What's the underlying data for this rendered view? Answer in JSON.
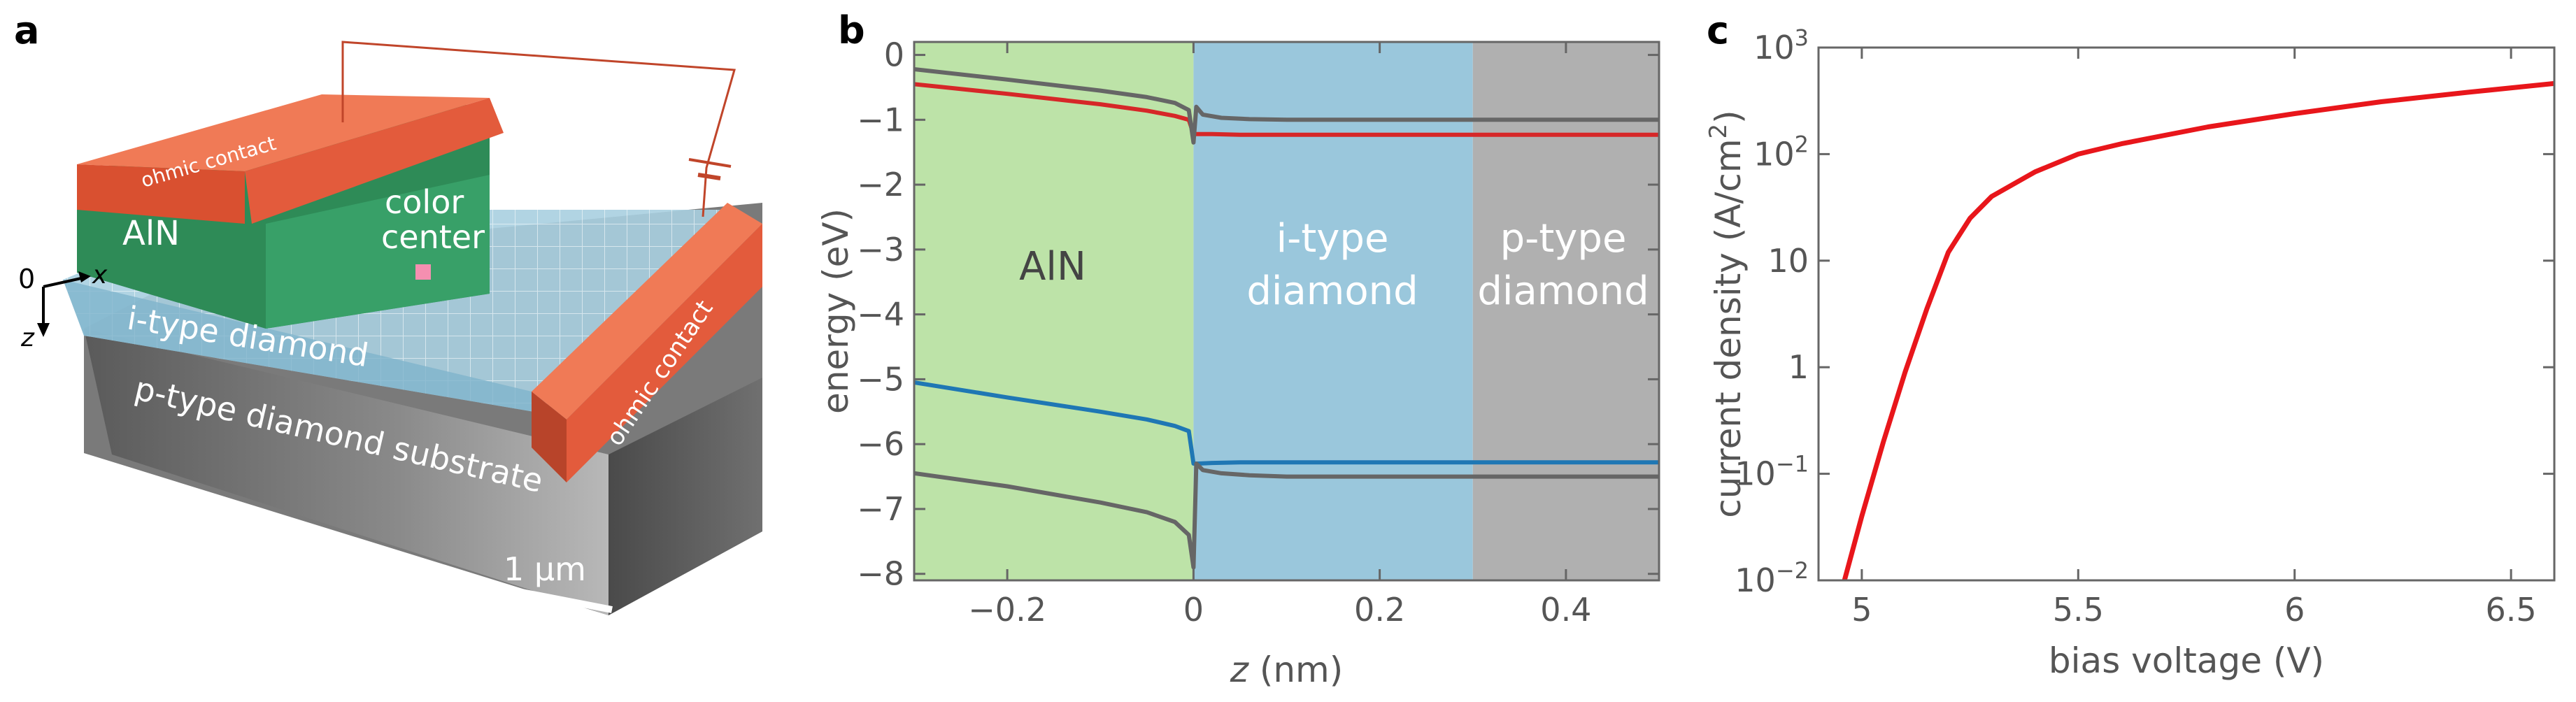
{
  "panels": {
    "a": {
      "letter": "a",
      "labels": {
        "ohmic_top": "ohmic contact",
        "ohmic_right": "ohmic contact",
        "aln": "AlN",
        "color_center_1": "color",
        "color_center_2": "center",
        "itype": "i-type diamond",
        "ptype": "p-type diamond substrate",
        "scale": "1 μm",
        "origin": "0",
        "x_axis": "x",
        "z_axis": "z"
      },
      "colors": {
        "contact": "#e35b3c",
        "aln": "#2e8b57",
        "itype": "#a9cfe0",
        "substrate": "#6e6e6e"
      }
    },
    "b": {
      "letter": "b",
      "regions": {
        "aln": "AlN",
        "itype_1": "i-type",
        "itype_2": "diamond",
        "ptype_1": "p-type",
        "ptype_2": "diamond"
      },
      "region_colors": {
        "aln": "#bde3a8",
        "itype": "#9ac7dc",
        "ptype": "#b0b0b0"
      }
    },
    "c": {
      "letter": "c"
    }
  },
  "chart_data": [
    {
      "type": "line",
      "panel": "b",
      "xlabel_italic": "z",
      "xlabel_unit": " (nm)",
      "ylabel": "energy (eV)",
      "xlim": [
        -0.3,
        0.5
      ],
      "ylim": [
        -8.1,
        0.2
      ],
      "x_ticks": [
        -0.2,
        0,
        0.2,
        0.4
      ],
      "x_tick_labels": [
        "−0.2",
        "0",
        "0.2",
        "0.4"
      ],
      "y_ticks": [
        0,
        -1,
        -2,
        -3,
        -4,
        -5,
        -6,
        -7,
        -8
      ],
      "y_tick_labels": [
        "0",
        "−1",
        "−2",
        "−3",
        "−4",
        "−5",
        "−6",
        "−7",
        "−8"
      ],
      "region_bounds": {
        "aln": [
          -0.3,
          0
        ],
        "itype": [
          0,
          0.3
        ],
        "ptype": [
          0.3,
          0.5
        ]
      },
      "series": [
        {
          "color": "#d62728",
          "x": [
            -0.3,
            -0.2,
            -0.1,
            -0.05,
            -0.02,
            -0.005,
            0.0,
            0.005,
            0.02,
            0.05,
            0.1,
            0.3,
            0.5
          ],
          "y": [
            -0.45,
            -0.6,
            -0.76,
            -0.86,
            -0.94,
            -1.0,
            -1.22,
            -1.22,
            -1.22,
            -1.23,
            -1.23,
            -1.23,
            -1.23
          ]
        },
        {
          "color": "#666666",
          "x": [
            -0.3,
            -0.2,
            -0.1,
            -0.05,
            -0.02,
            -0.005,
            0.0,
            0.003,
            0.01,
            0.03,
            0.06,
            0.1,
            0.3,
            0.5
          ],
          "y": [
            -0.22,
            -0.38,
            -0.55,
            -0.65,
            -0.74,
            -0.85,
            -1.35,
            -0.8,
            -0.92,
            -0.97,
            -0.99,
            -1.0,
            -1.0,
            -1.0
          ]
        },
        {
          "color": "#1f77b4",
          "x": [
            -0.3,
            -0.2,
            -0.1,
            -0.05,
            -0.02,
            -0.005,
            0.0,
            0.005,
            0.02,
            0.05,
            0.1,
            0.3,
            0.5
          ],
          "y": [
            -5.05,
            -5.28,
            -5.5,
            -5.62,
            -5.72,
            -5.8,
            -6.3,
            -6.3,
            -6.29,
            -6.28,
            -6.28,
            -6.28,
            -6.28
          ]
        },
        {
          "color": "#666666",
          "x": [
            -0.3,
            -0.2,
            -0.1,
            -0.05,
            -0.02,
            -0.005,
            0.0,
            0.003,
            0.01,
            0.03,
            0.06,
            0.1,
            0.3,
            0.5
          ],
          "y": [
            -6.45,
            -6.65,
            -6.9,
            -7.05,
            -7.2,
            -7.4,
            -7.9,
            -6.3,
            -6.4,
            -6.45,
            -6.48,
            -6.5,
            -6.5,
            -6.5
          ]
        }
      ]
    },
    {
      "type": "line",
      "panel": "c",
      "xlabel": "bias voltage (V)",
      "ylabel_main": "current density (A/cm",
      "ylabel_sup": "2",
      "ylabel_end": ")",
      "y_scale": "log",
      "xlim": [
        4.9,
        6.6
      ],
      "ylim": [
        0.01,
        1000
      ],
      "x_ticks": [
        5,
        5.5,
        6,
        6.5
      ],
      "x_tick_labels": [
        "5",
        "5.5",
        "6",
        "6.5"
      ],
      "y_ticks": [
        0.01,
        0.1,
        1,
        10,
        100,
        1000
      ],
      "y_tick_labels": [
        {
          "base": "10",
          "sup": "−2"
        },
        {
          "base": "10",
          "sup": "−1"
        },
        {
          "base": "1",
          "sup": ""
        },
        {
          "base": "10",
          "sup": ""
        },
        {
          "base": "10",
          "sup": "2"
        },
        {
          "base": "10",
          "sup": "3"
        }
      ],
      "series": [
        {
          "color": "#e8161b",
          "x": [
            4.96,
            5.0,
            5.05,
            5.1,
            5.15,
            5.2,
            5.25,
            5.3,
            5.4,
            5.5,
            5.6,
            5.8,
            6.0,
            6.2,
            6.4,
            6.6
          ],
          "y": [
            0.01,
            0.04,
            0.2,
            0.9,
            3.5,
            12,
            25,
            40,
            68,
            100,
            125,
            180,
            240,
            310,
            380,
            460
          ]
        }
      ]
    }
  ]
}
